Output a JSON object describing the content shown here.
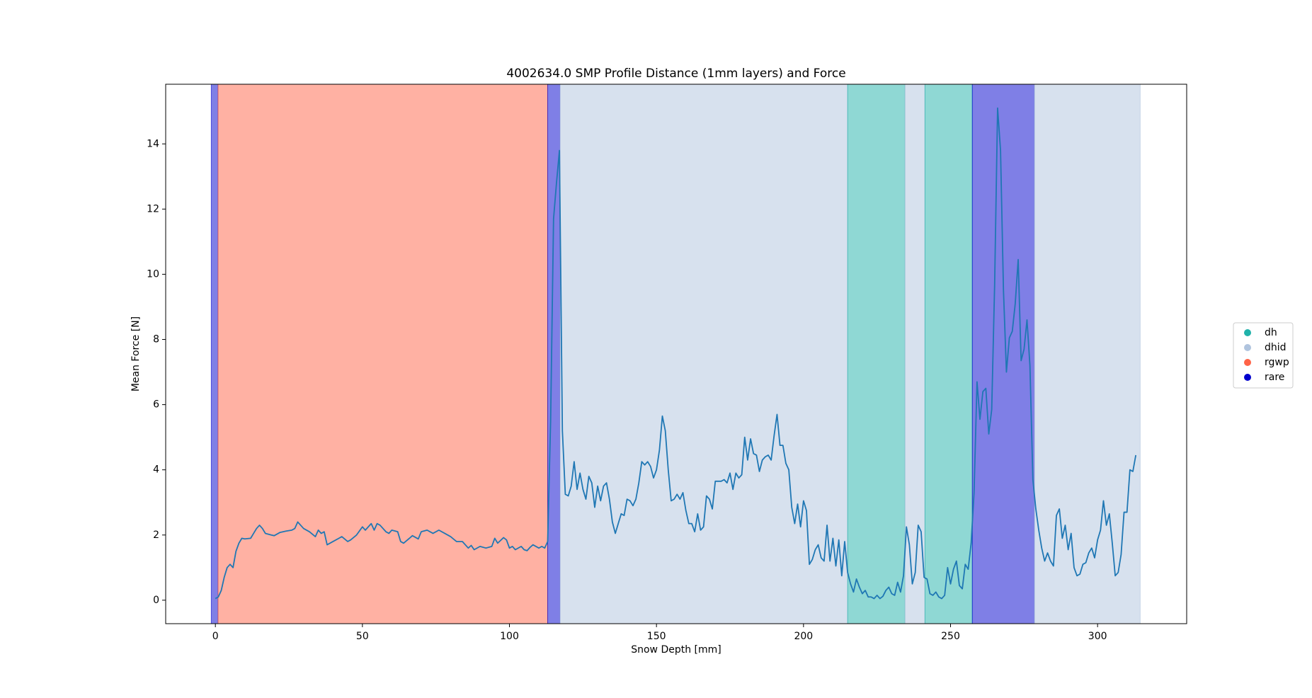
{
  "chart_data": {
    "type": "line",
    "title": "4002634.0 SMP Profile Distance (1mm layers) and Force",
    "xlabel": "Snow Depth [mm]",
    "ylabel": "Mean Force [N]",
    "xlim": [
      -16.9,
      330.3
    ],
    "ylim": [
      -0.72,
      15.83
    ],
    "xticks": [
      0,
      50,
      100,
      150,
      200,
      250,
      300
    ],
    "yticks": [
      0,
      2,
      4,
      6,
      8,
      10,
      12,
      14
    ],
    "legend_position": "center right outside",
    "legend": [
      {
        "name": "dh",
        "color": "#20b2aa"
      },
      {
        "name": "dhid",
        "color": "#b0c4de"
      },
      {
        "name": "rgwp",
        "color": "#ff6347"
      },
      {
        "name": "rare",
        "color": "#0000cd"
      }
    ],
    "bands": [
      {
        "start": -1.4,
        "end": 0.9,
        "class": "rare"
      },
      {
        "start": 0.9,
        "end": 113,
        "class": "rgwp"
      },
      {
        "start": 113,
        "end": 117.2,
        "class": "rare"
      },
      {
        "start": 117.2,
        "end": 215,
        "class": "dhid"
      },
      {
        "start": 215,
        "end": 234.5,
        "class": "dh"
      },
      {
        "start": 234.5,
        "end": 241.3,
        "class": "dhid"
      },
      {
        "start": 241.3,
        "end": 257.4,
        "class": "dh"
      },
      {
        "start": 257.4,
        "end": 278.5,
        "class": "rare"
      },
      {
        "start": 278.5,
        "end": 314.5,
        "class": "dhid"
      }
    ],
    "x": [
      0,
      1,
      2,
      3,
      4,
      5,
      6,
      7,
      8,
      9,
      10,
      12,
      13,
      14,
      15,
      16,
      17,
      19,
      20,
      22,
      24,
      26,
      27,
      28,
      29,
      30,
      32,
      34,
      35,
      36,
      37,
      38,
      40,
      42,
      43,
      45,
      46,
      48,
      50,
      51,
      53,
      54,
      55,
      56,
      58,
      59,
      60,
      62,
      63,
      64,
      66,
      67,
      69,
      70,
      72,
      74,
      76,
      78,
      80,
      82,
      84,
      86,
      87,
      88,
      90,
      92,
      94,
      95,
      96,
      98,
      99,
      100,
      101,
      102,
      104,
      105,
      106,
      107,
      108,
      110,
      111,
      112,
      113,
      114,
      115,
      116,
      117,
      118,
      119,
      120,
      121,
      122,
      123,
      124,
      125,
      126,
      127,
      128,
      129,
      130,
      131,
      132,
      133,
      134,
      135,
      136,
      137,
      138,
      139,
      140,
      141,
      142,
      143,
      144,
      145,
      146,
      147,
      148,
      149,
      150,
      151,
      152,
      153,
      154,
      155,
      156,
      157,
      158,
      159,
      160,
      161,
      162,
      163,
      164,
      165,
      166,
      167,
      168,
      169,
      170,
      171,
      172,
      173,
      174,
      175,
      176,
      177,
      178,
      179,
      180,
      181,
      182,
      183,
      184,
      185,
      186,
      187,
      188,
      189,
      190,
      191,
      192,
      193,
      194,
      195,
      196,
      197,
      198,
      199,
      200,
      201,
      202,
      203,
      204,
      205,
      206,
      207,
      208,
      209,
      210,
      211,
      212,
      213,
      214,
      215,
      216,
      217,
      218,
      219,
      220,
      221,
      222,
      223,
      224,
      225,
      226,
      227,
      228,
      229,
      230,
      231,
      232,
      233,
      234,
      235,
      236,
      237,
      238,
      239,
      240,
      241,
      242,
      243,
      244,
      245,
      246,
      247,
      248,
      249,
      250,
      251,
      252,
      253,
      254,
      255,
      256,
      257,
      258,
      259,
      260,
      261,
      262,
      263,
      264,
      265,
      266,
      267,
      268,
      269,
      270,
      271,
      272,
      273,
      274,
      275,
      276,
      277,
      278,
      279,
      280,
      281,
      282,
      283,
      284,
      285,
      286,
      287,
      288,
      289,
      290,
      291,
      292,
      293,
      294,
      295,
      296,
      297,
      298,
      299,
      300,
      301,
      302,
      303,
      304,
      305,
      306,
      307,
      308,
      309,
      310,
      311,
      312,
      313
    ],
    "series": [
      {
        "color": "#1f77b4",
        "values": [
          0.05,
          0.1,
          0.3,
          0.7,
          1.0,
          1.1,
          1.0,
          1.5,
          1.75,
          1.9,
          1.88,
          1.9,
          2.05,
          2.2,
          2.3,
          2.2,
          2.05,
          2.0,
          1.98,
          2.08,
          2.12,
          2.15,
          2.2,
          2.4,
          2.3,
          2.2,
          2.1,
          1.95,
          2.15,
          2.05,
          2.1,
          1.7,
          1.8,
          1.9,
          1.95,
          1.8,
          1.85,
          2.0,
          2.25,
          2.15,
          2.35,
          2.15,
          2.35,
          2.3,
          2.1,
          2.05,
          2.15,
          2.1,
          1.8,
          1.75,
          1.9,
          1.98,
          1.88,
          2.1,
          2.15,
          2.05,
          2.15,
          2.05,
          1.95,
          1.8,
          1.8,
          1.6,
          1.68,
          1.55,
          1.65,
          1.6,
          1.65,
          1.9,
          1.75,
          1.92,
          1.85,
          1.6,
          1.65,
          1.55,
          1.65,
          1.55,
          1.52,
          1.62,
          1.7,
          1.6,
          1.65,
          1.6,
          1.8,
          5.5,
          11.7,
          12.8,
          13.8,
          5.2,
          3.25,
          3.2,
          3.5,
          4.25,
          3.4,
          3.9,
          3.4,
          3.1,
          3.8,
          3.6,
          2.85,
          3.5,
          3.05,
          3.5,
          3.6,
          3.1,
          2.4,
          2.05,
          2.35,
          2.65,
          2.6,
          3.1,
          3.05,
          2.9,
          3.1,
          3.6,
          4.25,
          4.15,
          4.25,
          4.1,
          3.75,
          4.0,
          4.6,
          5.65,
          5.2,
          4.0,
          3.05,
          3.1,
          3.25,
          3.1,
          3.3,
          2.75,
          2.35,
          2.35,
          2.1,
          2.65,
          2.15,
          2.25,
          3.2,
          3.1,
          2.8,
          3.65,
          3.65,
          3.65,
          3.7,
          3.6,
          3.9,
          3.4,
          3.9,
          3.75,
          3.85,
          5.0,
          4.3,
          4.95,
          4.5,
          4.45,
          3.95,
          4.3,
          4.4,
          4.45,
          4.3,
          5.05,
          5.7,
          4.75,
          4.75,
          4.2,
          4.0,
          2.85,
          2.35,
          2.95,
          2.25,
          3.05,
          2.75,
          1.1,
          1.25,
          1.55,
          1.7,
          1.3,
          1.2,
          2.3,
          1.2,
          1.9,
          1.05,
          1.85,
          0.75,
          1.8,
          0.85,
          0.5,
          0.25,
          0.65,
          0.4,
          0.2,
          0.3,
          0.1,
          0.1,
          0.05,
          0.15,
          0.05,
          0.12,
          0.3,
          0.4,
          0.2,
          0.15,
          0.55,
          0.25,
          0.75,
          2.25,
          1.7,
          0.5,
          0.85,
          2.3,
          2.1,
          0.7,
          0.65,
          0.2,
          0.15,
          0.25,
          0.1,
          0.05,
          0.15,
          1.0,
          0.5,
          0.95,
          1.2,
          0.45,
          0.35,
          1.1,
          0.95,
          1.75,
          3.3,
          6.7,
          5.55,
          6.4,
          6.5,
          5.1,
          5.85,
          9.7,
          15.1,
          13.8,
          9.5,
          7.0,
          8.05,
          8.25,
          9.1,
          10.45,
          7.35,
          7.7,
          8.6,
          7.2,
          3.7,
          2.8,
          2.15,
          1.6,
          1.2,
          1.45,
          1.2,
          1.05,
          2.6,
          2.8,
          1.9,
          2.3,
          1.55,
          2.05,
          1.0,
          0.75,
          0.8,
          1.1,
          1.15,
          1.45,
          1.6,
          1.3,
          1.85,
          2.15,
          3.05,
          2.3,
          2.65,
          1.75,
          0.75,
          0.85,
          1.4,
          2.7,
          2.7,
          4.0,
          3.95,
          4.45
        ]
      }
    ]
  }
}
